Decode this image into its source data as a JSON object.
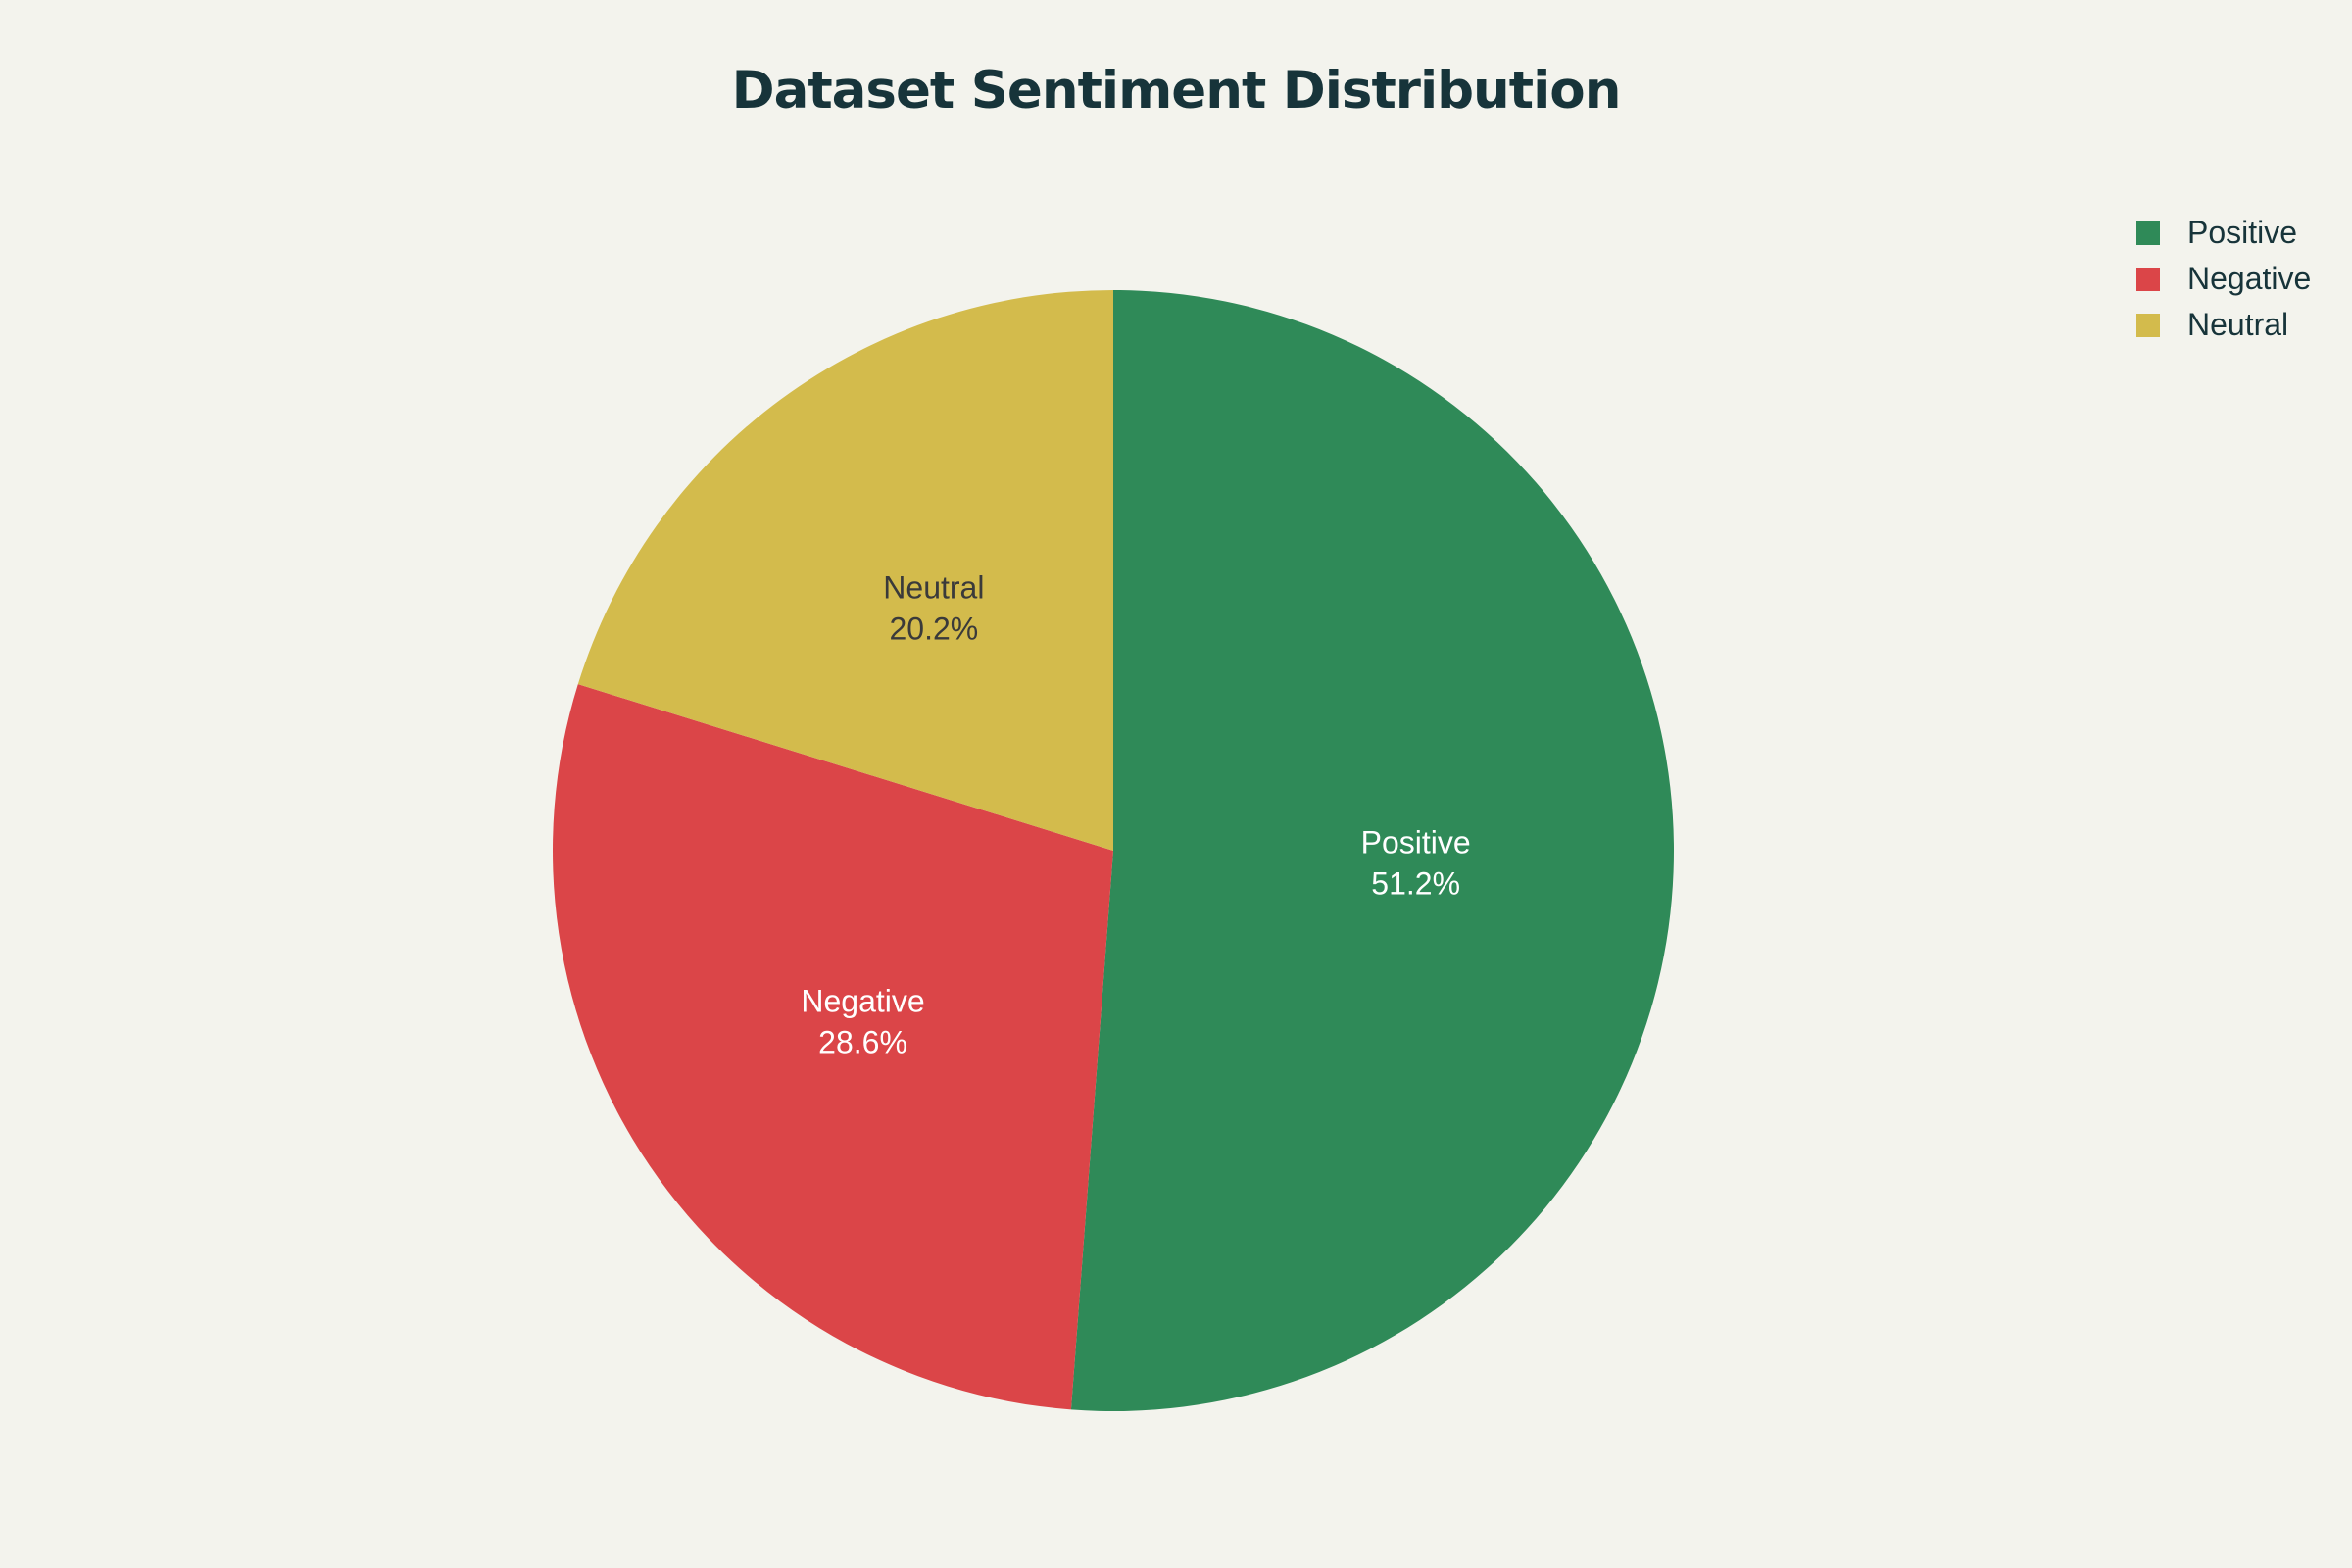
{
  "chart_data": {
    "type": "pie",
    "title": "Dataset Sentiment Distribution",
    "categories": [
      "Positive",
      "Negative",
      "Neutral"
    ],
    "values": [
      51.2,
      28.6,
      20.2
    ],
    "value_labels": [
      "51.2%",
      "28.6%",
      "20.2%"
    ],
    "colors": [
      "#2f8a58",
      "#db4548",
      "#d3bb4c"
    ],
    "label_colors": [
      "#ffffff",
      "#ffffff",
      "#3a3a3a"
    ],
    "legend": "top-right",
    "start": "12 o'clock",
    "direction": "clockwise",
    "background": "#f3f3ed"
  }
}
